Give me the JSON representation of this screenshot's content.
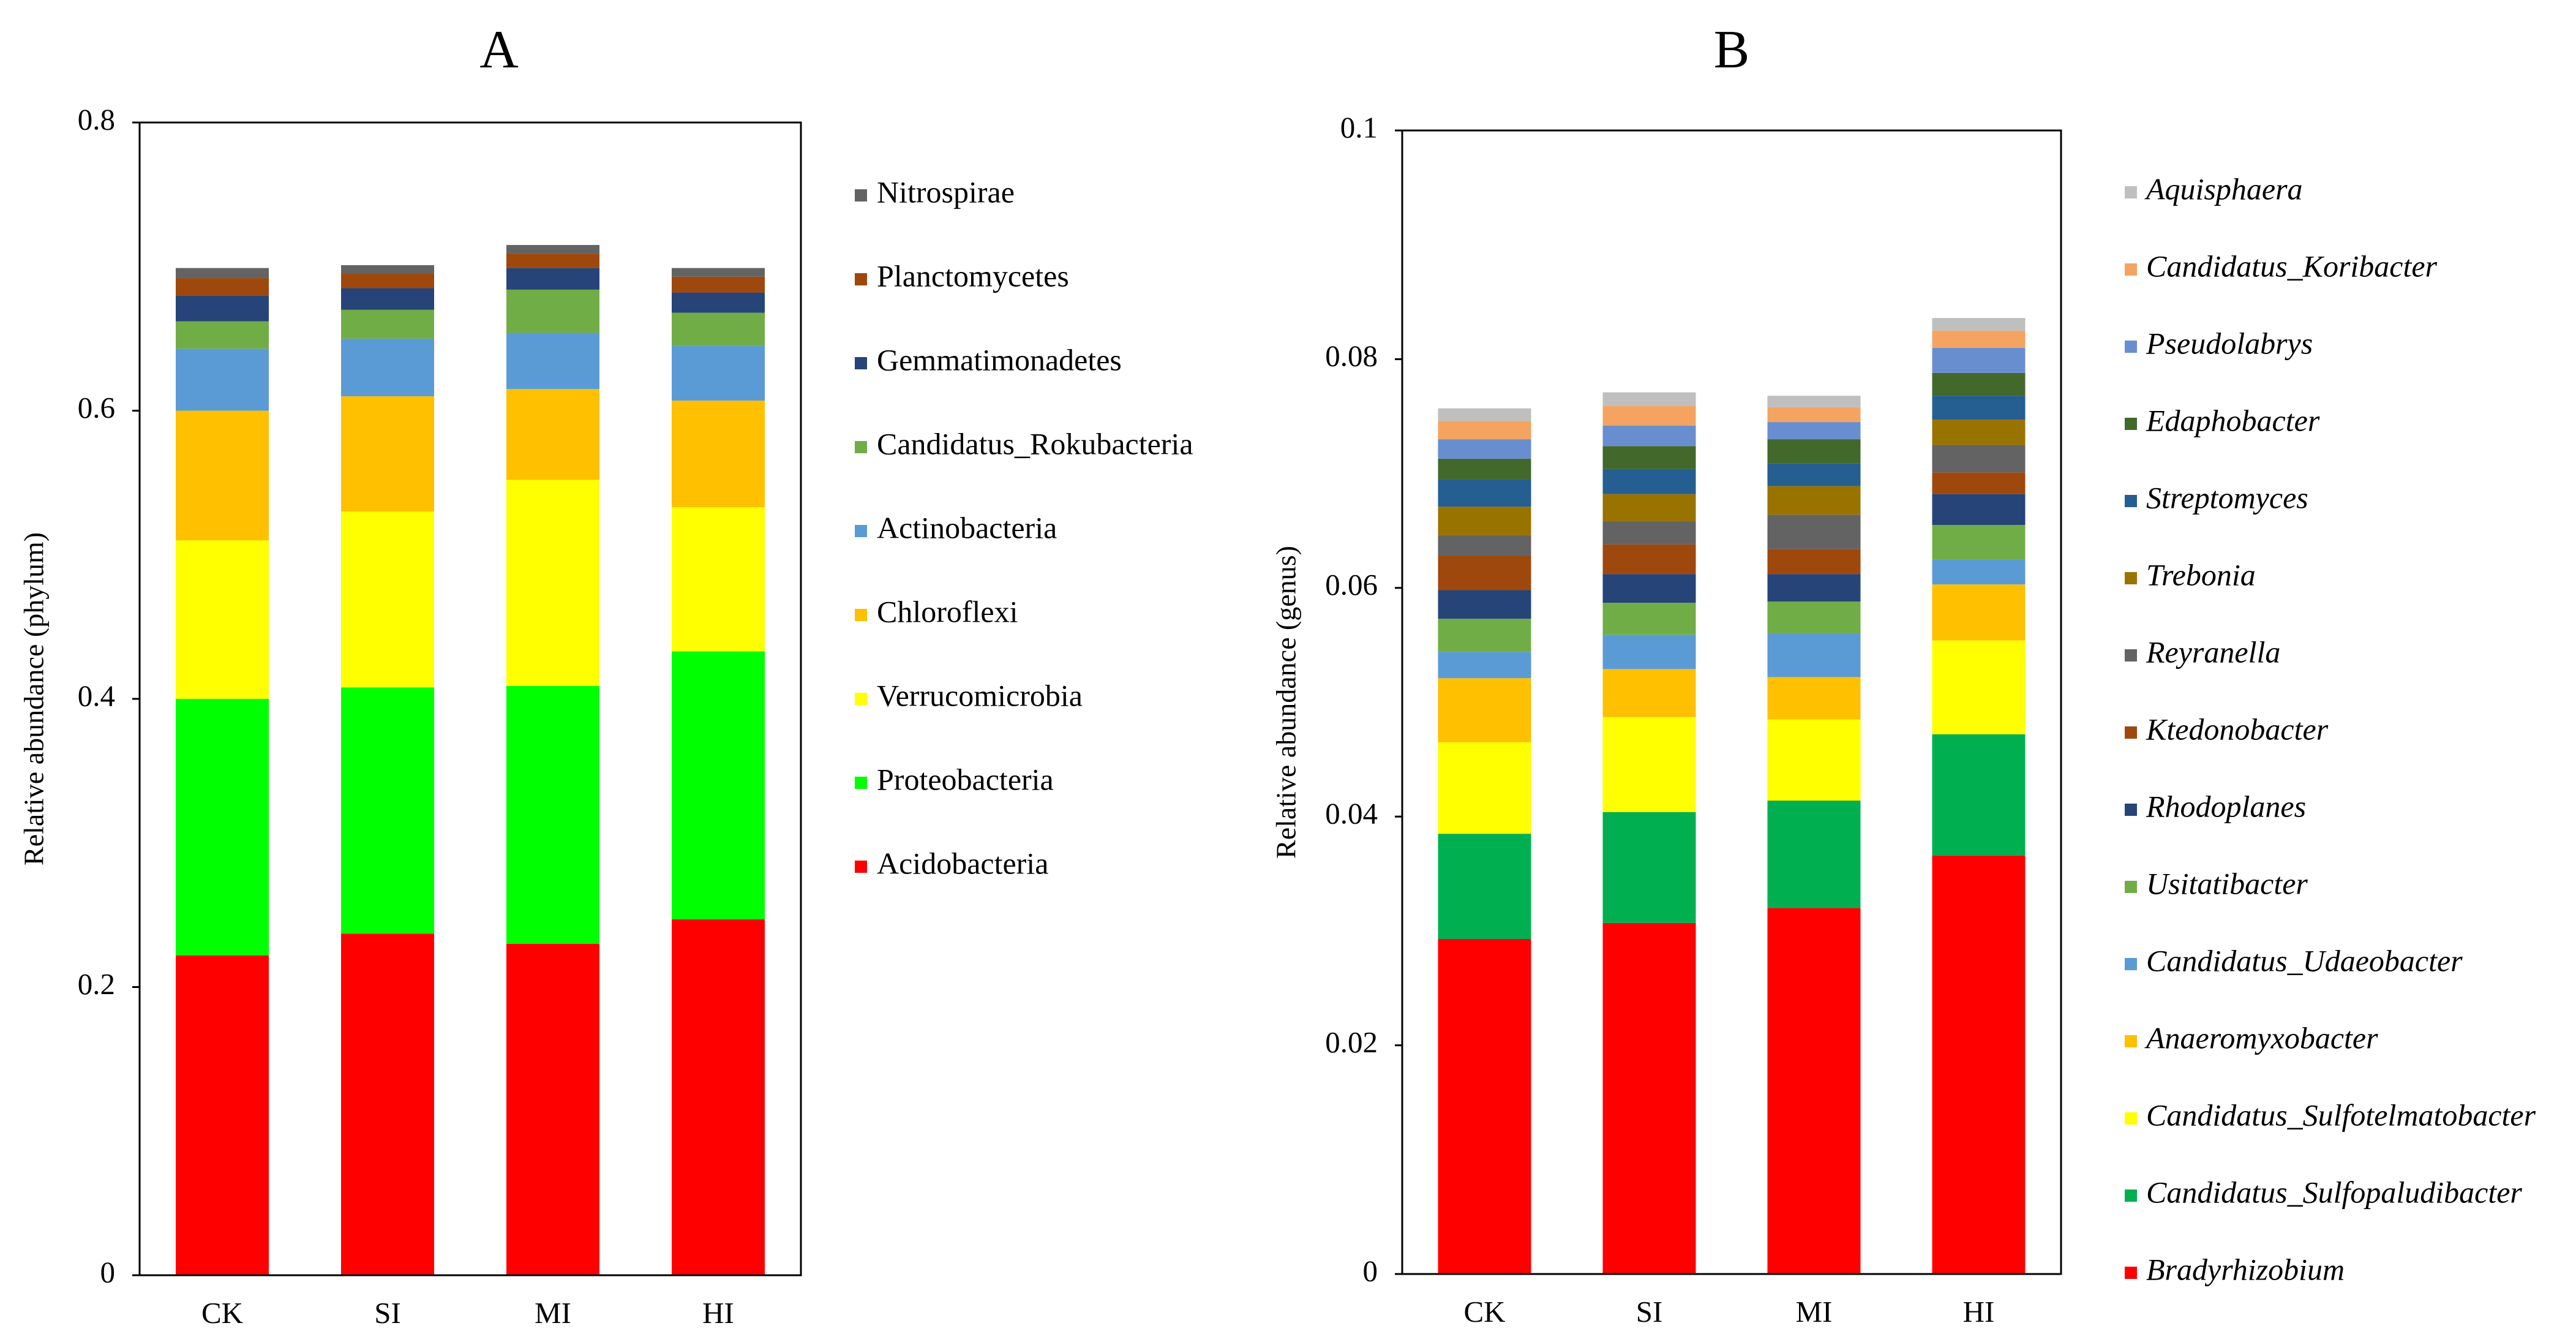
{
  "chart_data": [
    {
      "type": "bar",
      "stacked": true,
      "title": "A",
      "xlabel": "",
      "ylabel": "Relative abundance (phylum)",
      "ylim": [
        0,
        0.8
      ],
      "yticks": [
        0,
        0.2,
        0.4,
        0.6,
        0.8
      ],
      "ytick_labels": [
        "0",
        "0.2",
        "0.4",
        "0.6",
        "0.8"
      ],
      "categories": [
        "CK",
        "SI",
        "MI",
        "HI"
      ],
      "legend_italic": false,
      "series": [
        {
          "name": "Acidobacteria",
          "color": "#ff0000",
          "values": [
            0.222,
            0.237,
            0.23,
            0.247
          ]
        },
        {
          "name": "Proteobacteria",
          "color": "#00ff00",
          "values": [
            0.178,
            0.171,
            0.179,
            0.186
          ]
        },
        {
          "name": "Verrucomicrobia",
          "color": "#ffff00",
          "values": [
            0.11,
            0.122,
            0.143,
            0.1
          ]
        },
        {
          "name": "Chloroflexi",
          "color": "#ffc000",
          "values": [
            0.09,
            0.08,
            0.063,
            0.074
          ]
        },
        {
          "name": "Actinobacteria",
          "color": "#5b9bd5",
          "values": [
            0.043,
            0.04,
            0.039,
            0.038
          ]
        },
        {
          "name": "Candidatus_Rokubacteria",
          "color": "#70ad47",
          "values": [
            0.019,
            0.02,
            0.03,
            0.023
          ]
        },
        {
          "name": "Gemmatimonadetes",
          "color": "#264478",
          "values": [
            0.018,
            0.015,
            0.015,
            0.014
          ]
        },
        {
          "name": "Planctomycetes",
          "color": "#9e480e",
          "values": [
            0.012,
            0.01,
            0.01,
            0.011
          ]
        },
        {
          "name": "Nitrospirae",
          "color": "#636363",
          "values": [
            0.007,
            0.006,
            0.006,
            0.006
          ]
        }
      ]
    },
    {
      "type": "bar",
      "stacked": true,
      "title": "B",
      "xlabel": "",
      "ylabel": "Relative abundance (genus)",
      "ylim": [
        0,
        0.1
      ],
      "yticks": [
        0,
        0.02,
        0.04,
        0.06,
        0.08,
        0.1
      ],
      "ytick_labels": [
        "0",
        "0.02",
        "0.04",
        "0.06",
        "0.08",
        "0.1"
      ],
      "categories": [
        "CK",
        "SI",
        "MI",
        "HI"
      ],
      "legend_italic": true,
      "series": [
        {
          "name": "Bradyrhizobium",
          "color": "#ff0000",
          "values": [
            0.0293,
            0.0307,
            0.032,
            0.0366
          ]
        },
        {
          "name": "Candidatus_Sulfopaludibacter",
          "color": "#00b050",
          "values": [
            0.0092,
            0.0097,
            0.0094,
            0.0106
          ]
        },
        {
          "name": "Candidatus_Sulfotelmatobacter",
          "color": "#ffff00",
          "values": [
            0.008,
            0.0083,
            0.0071,
            0.0082
          ]
        },
        {
          "name": "Anaeromyxobacter",
          "color": "#ffc000",
          "values": [
            0.0056,
            0.0042,
            0.0037,
            0.0049
          ]
        },
        {
          "name": "Candidatus_Udaeobacter",
          "color": "#5b9bd5",
          "values": [
            0.0023,
            0.003,
            0.0038,
            0.0022
          ]
        },
        {
          "name": "Usitatibacter",
          "color": "#70ad47",
          "values": [
            0.0029,
            0.0028,
            0.0028,
            0.003
          ]
        },
        {
          "name": "Rhodoplanes",
          "color": "#264478",
          "values": [
            0.0025,
            0.0025,
            0.0024,
            0.0027
          ]
        },
        {
          "name": "Ktedonobacter",
          "color": "#9e480e",
          "values": [
            0.003,
            0.0026,
            0.0022,
            0.0019
          ]
        },
        {
          "name": "Reyranella",
          "color": "#636363",
          "values": [
            0.0018,
            0.002,
            0.003,
            0.0024
          ]
        },
        {
          "name": "Trebonia",
          "color": "#997300",
          "values": [
            0.0025,
            0.0024,
            0.0025,
            0.0022
          ]
        },
        {
          "name": "Streptomyces",
          "color": "#255e91",
          "values": [
            0.0024,
            0.0022,
            0.002,
            0.0021
          ]
        },
        {
          "name": "Edaphobacter",
          "color": "#43682b",
          "values": [
            0.0018,
            0.002,
            0.0021,
            0.002
          ]
        },
        {
          "name": "Pseudolabrys",
          "color": "#698ed0",
          "values": [
            0.0017,
            0.0018,
            0.0015,
            0.0022
          ]
        },
        {
          "name": "Candidatus_Koribacter",
          "color": "#f4a460",
          "values": [
            0.0016,
            0.0017,
            0.0013,
            0.0015
          ]
        },
        {
          "name": "Aquisphaera",
          "color": "#bfbfbf",
          "values": [
            0.0011,
            0.0012,
            0.001,
            0.0011
          ]
        }
      ]
    }
  ]
}
